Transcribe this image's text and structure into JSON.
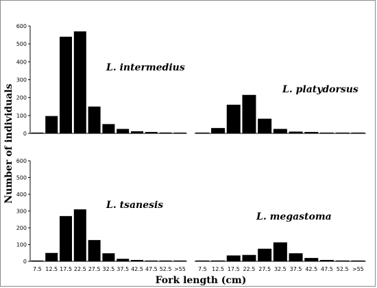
{
  "chart_data": {
    "type": "bar",
    "xlabel": "Fork length (cm)",
    "ylabel": "Number of individuals",
    "categories": [
      "7.5",
      "12.5",
      "17.5",
      "22.5",
      "27.5",
      "32.5",
      "37.5",
      "42.5",
      "47.5",
      "52.5",
      ">55"
    ],
    "ylim": [
      0,
      600
    ],
    "yticks": [
      "0",
      "100",
      "200",
      "300",
      "400",
      "500",
      "600"
    ],
    "grid": false,
    "panels": [
      {
        "label": "L. intermedius",
        "position": "top-left",
        "values": [
          2,
          97,
          540,
          570,
          150,
          52,
          25,
          12,
          8,
          5,
          3
        ]
      },
      {
        "label": "L. platydorsus",
        "position": "top-right",
        "values": [
          0,
          30,
          160,
          215,
          82,
          25,
          10,
          8,
          2,
          4,
          4
        ]
      },
      {
        "label": "L. tsanesis",
        "position": "bottom-left",
        "values": [
          0,
          50,
          270,
          310,
          127,
          48,
          15,
          8,
          0,
          0,
          0
        ]
      },
      {
        "label": "L. megastoma",
        "position": "bottom-right",
        "values": [
          0,
          5,
          35,
          38,
          75,
          113,
          48,
          20,
          8,
          5,
          4
        ]
      }
    ]
  }
}
